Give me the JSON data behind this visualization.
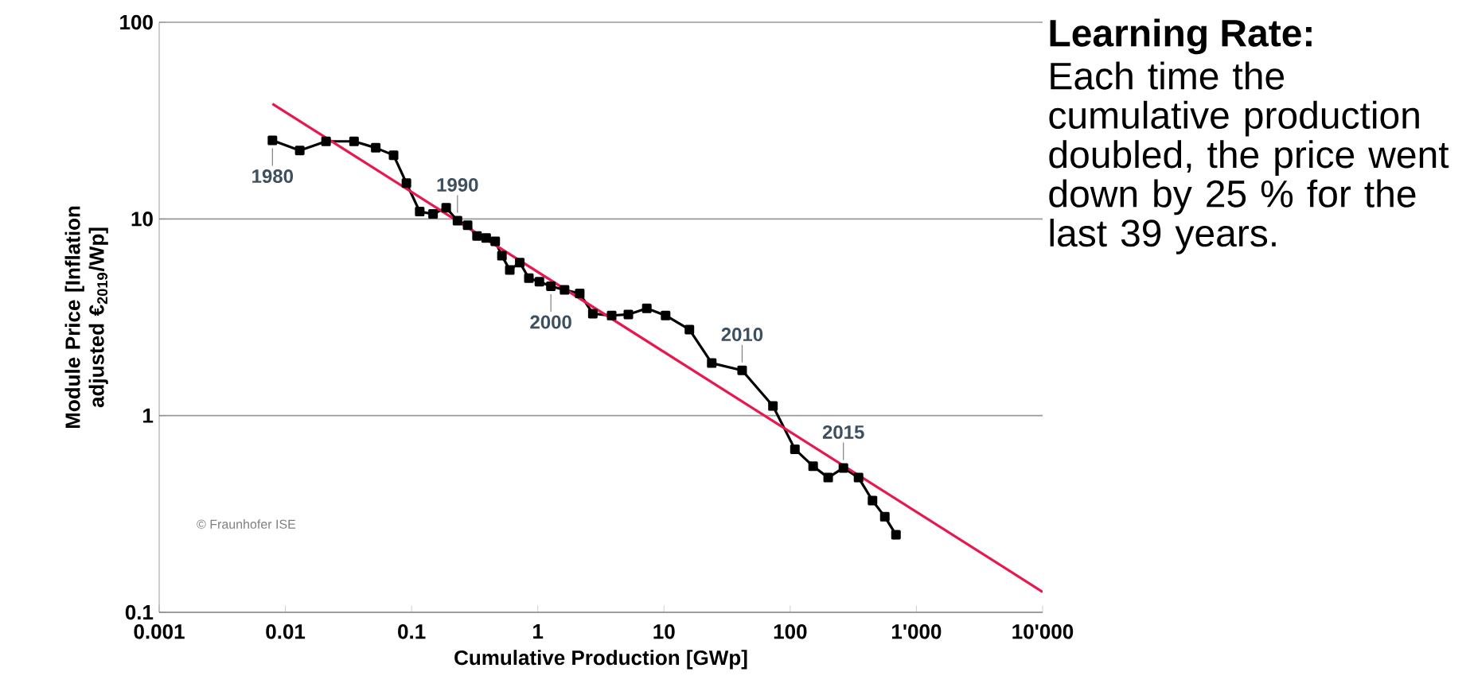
{
  "chart_data": {
    "type": "line",
    "xlabel": "Cumulative Production [GWp]",
    "ylabel": "Module Price [Inflation adjusted €$_{2019}$/Wp]",
    "log": "xy",
    "grid": "y",
    "marker": "square",
    "line_style": "solid",
    "xlim": [
      0.001,
      10000
    ],
    "ylim": [
      0.1,
      100
    ],
    "xticks": [
      0.001,
      0.01,
      0.1,
      1,
      10,
      100,
      {
        "value": 1000,
        "label": "1'000"
      },
      {
        "value": 10000,
        "label": "10'000"
      }
    ],
    "yticks": [
      0.1,
      1,
      10,
      100
    ],
    "series": [
      {
        "color": "#000000",
        "x": [
          0.0079,
          0.013,
          0.021,
          0.035,
          0.052,
          0.072,
          0.091,
          0.116,
          0.148,
          0.188,
          0.231,
          0.278,
          0.33,
          0.39,
          0.46,
          0.52,
          0.6,
          0.72,
          0.85,
          1.03,
          1.27,
          1.63,
          2.15,
          2.73,
          3.85,
          5.22,
          7.31,
          10.3,
          15.9,
          23.9,
          41.6,
          73,
          109,
          152,
          200,
          264,
          348,
          449,
          562,
          689
        ],
        "values": [
          25.1,
          22.3,
          24.8,
          24.8,
          23,
          21.1,
          15.2,
          10.9,
          10.6,
          11.4,
          9.8,
          9.3,
          8.2,
          8.0,
          7.7,
          6.5,
          5.5,
          6.0,
          5.0,
          4.8,
          4.55,
          4.36,
          4.18,
          3.3,
          3.23,
          3.27,
          3.51,
          3.23,
          2.74,
          1.85,
          1.7,
          1.12,
          0.675,
          0.553,
          0.484,
          0.542,
          0.484,
          0.37,
          0.306,
          0.248
        ]
      },
      {
        "type": "line",
        "marker": "none",
        "color": "#e8174f",
        "x": [
          0.0079,
          10000
        ],
        "values": [
          38.5,
          0.127
        ]
      }
    ],
    "annotations": [
      {
        "text": "1980",
        "x": 0.0079,
        "y": 25.1
      },
      {
        "text": "1990",
        "x": 0.231,
        "y": 9.8
      },
      {
        "text": "2000",
        "x": 1.27,
        "y": 4.55
      },
      {
        "text": "2010",
        "x": 41.6,
        "y": 1.7
      },
      {
        "text": "2015",
        "x": 264,
        "y": 0.542
      },
      "© Fraunhofer ISE",
      "Learning Rate:",
      "Each time the cumulative production doubled, the price went down by 25 % for the last 39 years."
    ]
  }
}
